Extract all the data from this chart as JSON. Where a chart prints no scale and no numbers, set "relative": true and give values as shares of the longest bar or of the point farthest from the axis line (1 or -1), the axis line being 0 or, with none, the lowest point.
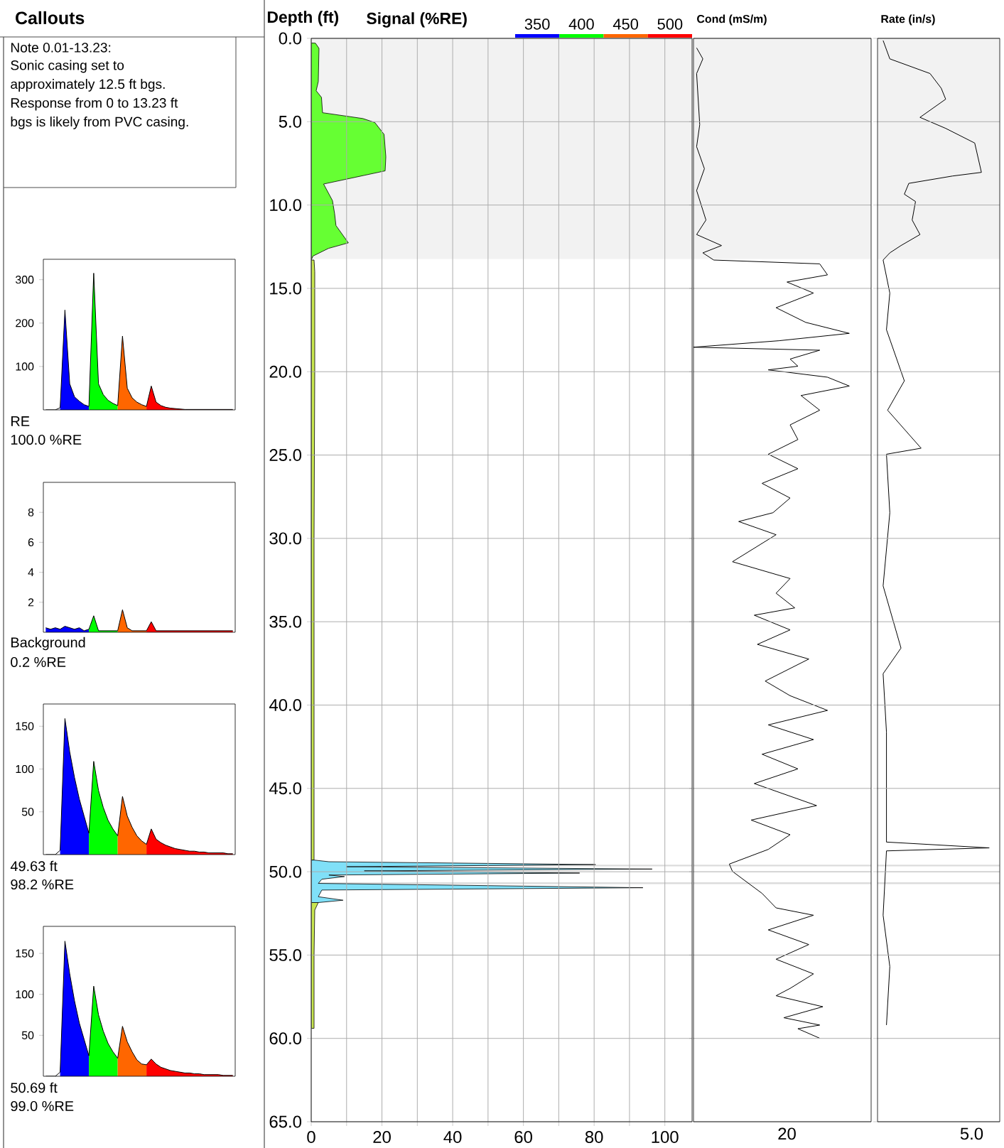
{
  "chart_data": [
    {
      "type": "other",
      "title": "Callouts",
      "annotations": [
        "Note 0.01-13.23:",
        "Sonic casing set to",
        "approximately 12.5 ft bgs.",
        "Response from 0 to 13.23 ft",
        "bgs is likely from PVC casing."
      ]
    },
    {
      "type": "area",
      "categories": [
        null,
        null,
        null,
        null,
        null,
        null,
        null,
        null,
        null,
        null,
        null,
        null,
        null,
        null,
        null,
        null,
        null,
        null,
        null,
        null,
        null,
        null,
        null,
        null,
        null,
        null,
        null,
        null,
        null,
        null,
        null,
        null,
        null,
        null,
        null,
        null,
        null,
        null,
        null,
        null
      ],
      "ylim": [
        0,
        347
      ],
      "yticks": [
        100,
        200,
        300
      ],
      "tick_labels": "y",
      "annotations": [
        "RE",
        "100.0 %RE"
      ],
      "series": [
        {
          "color": "#0000ff",
          "values": [
            null,
            null,
            null,
            5,
            230,
            60,
            30,
            20,
            12,
            8,
            null,
            null,
            null,
            null,
            null,
            null,
            null,
            null,
            null,
            null,
            null,
            null,
            null,
            null,
            null,
            null,
            null,
            null,
            null,
            null,
            null,
            null,
            null,
            null,
            null,
            null,
            null,
            null,
            null,
            null
          ]
        },
        {
          "color": "#00ff00",
          "values": [
            null,
            null,
            null,
            null,
            null,
            null,
            null,
            null,
            null,
            8,
            315,
            60,
            35,
            22,
            15,
            10,
            null,
            null,
            null,
            null,
            null,
            null,
            null,
            null,
            null,
            null,
            null,
            null,
            null,
            null,
            null,
            null,
            null,
            null,
            null,
            null,
            null,
            null,
            null,
            null
          ]
        },
        {
          "color": "#ff6600",
          "values": [
            null,
            null,
            null,
            null,
            null,
            null,
            null,
            null,
            null,
            null,
            null,
            null,
            null,
            null,
            null,
            10,
            170,
            50,
            28,
            18,
            12,
            8,
            null,
            null,
            null,
            null,
            null,
            null,
            null,
            null,
            null,
            null,
            null,
            null,
            null,
            null,
            null,
            null,
            null,
            null
          ]
        },
        {
          "color": "#ff0000",
          "values": [
            null,
            null,
            null,
            null,
            null,
            null,
            null,
            null,
            null,
            null,
            null,
            null,
            null,
            null,
            null,
            null,
            null,
            null,
            null,
            null,
            null,
            8,
            55,
            18,
            10,
            6,
            4,
            3,
            2,
            1,
            1,
            1,
            1,
            1,
            1,
            1,
            1,
            1,
            1,
            1
          ]
        },
        {
          "type": "line",
          "color": "#000000",
          "values": [
            0,
            0,
            0,
            5,
            230,
            60,
            30,
            20,
            12,
            8,
            315,
            60,
            35,
            22,
            15,
            10,
            170,
            50,
            28,
            18,
            12,
            8,
            55,
            18,
            10,
            6,
            4,
            3,
            2,
            1,
            1,
            1,
            1,
            1,
            1,
            1,
            1,
            1,
            1,
            1
          ]
        }
      ]
    },
    {
      "type": "area",
      "categories": [
        null,
        null,
        null,
        null,
        null,
        null,
        null,
        null,
        null,
        null,
        null,
        null,
        null,
        null,
        null,
        null,
        null,
        null,
        null,
        null,
        null,
        null,
        null,
        null,
        null,
        null,
        null,
        null,
        null,
        null,
        null,
        null,
        null,
        null,
        null,
        null,
        null,
        null,
        null,
        null
      ],
      "ylim": [
        0,
        10
      ],
      "yticks": [
        2,
        4,
        6,
        8
      ],
      "tick_labels": "y",
      "annotations": [
        "Background",
        "0.2 %RE"
      ],
      "series": [
        {
          "color": "#0000ff",
          "values": [
            0.3,
            0.2,
            0.3,
            0.2,
            0.4,
            0.3,
            0.2,
            0.3,
            0.1,
            0.2,
            null,
            null,
            null,
            null,
            null,
            null,
            null,
            null,
            null,
            null,
            null,
            null,
            null,
            null,
            null,
            null,
            null,
            null,
            null,
            null,
            null,
            null,
            null,
            null,
            null,
            null,
            null,
            null,
            null,
            null
          ]
        },
        {
          "color": "#00ff00",
          "values": [
            null,
            null,
            null,
            null,
            null,
            null,
            null,
            null,
            null,
            0.2,
            1.1,
            0.1,
            0.1,
            0.1,
            0.1,
            0.1,
            null,
            null,
            null,
            null,
            null,
            null,
            null,
            null,
            null,
            null,
            null,
            null,
            null,
            null,
            null,
            null,
            null,
            null,
            null,
            null,
            null,
            null,
            null,
            null
          ]
        },
        {
          "color": "#ff6600",
          "values": [
            null,
            null,
            null,
            null,
            null,
            null,
            null,
            null,
            null,
            null,
            null,
            null,
            null,
            null,
            null,
            0.1,
            1.5,
            0.3,
            0.1,
            0.1,
            0.1,
            0.1,
            null,
            null,
            null,
            null,
            null,
            null,
            null,
            null,
            null,
            null,
            null,
            null,
            null,
            null,
            null,
            null,
            null,
            null
          ]
        },
        {
          "color": "#ff0000",
          "values": [
            null,
            null,
            null,
            null,
            null,
            null,
            null,
            null,
            null,
            null,
            null,
            null,
            null,
            null,
            null,
            null,
            null,
            null,
            null,
            null,
            null,
            0.1,
            0.7,
            0.1,
            0.1,
            0.1,
            0.1,
            0.1,
            0.1,
            0.1,
            0.1,
            0.1,
            0.1,
            0.1,
            0.1,
            0.1,
            0.1,
            0.1,
            0.1,
            0.1
          ]
        },
        {
          "type": "line",
          "color": "#000000",
          "values": [
            0.3,
            0.2,
            0.3,
            0.2,
            0.4,
            0.3,
            0.2,
            0.3,
            0.1,
            0.2,
            1.1,
            0.1,
            0.1,
            0.1,
            0.1,
            0.1,
            1.5,
            0.3,
            0.1,
            0.1,
            0.1,
            0.1,
            0.7,
            0.1,
            0.1,
            0.1,
            0.1,
            0.1,
            0.1,
            0.1,
            0.1,
            0.1,
            0.1,
            0.1,
            0.1,
            0.1,
            0.1,
            0.1,
            0.1,
            0.1
          ]
        }
      ]
    },
    {
      "type": "area",
      "categories": [
        null,
        null,
        null,
        null,
        null,
        null,
        null,
        null,
        null,
        null,
        null,
        null,
        null,
        null,
        null,
        null,
        null,
        null,
        null,
        null,
        null,
        null,
        null,
        null,
        null,
        null,
        null,
        null,
        null,
        null,
        null,
        null,
        null,
        null,
        null,
        null,
        null,
        null,
        null,
        null
      ],
      "ylim": [
        0,
        176
      ],
      "yticks": [
        50,
        100,
        150
      ],
      "tick_labels": "y",
      "annotations": [
        "49.63 ft",
        "98.2 %RE"
      ],
      "series": [
        {
          "color": "#0000ff",
          "values": [
            null,
            null,
            null,
            5,
            159,
            120,
            90,
            65,
            45,
            25,
            null,
            null,
            null,
            null,
            null,
            null,
            null,
            null,
            null,
            null,
            null,
            null,
            null,
            null,
            null,
            null,
            null,
            null,
            null,
            null,
            null,
            null,
            null,
            null,
            null,
            null,
            null,
            null,
            null,
            null
          ]
        },
        {
          "color": "#00ff00",
          "values": [
            null,
            null,
            null,
            null,
            null,
            null,
            null,
            null,
            null,
            25,
            109,
            75,
            55,
            40,
            30,
            22,
            null,
            null,
            null,
            null,
            null,
            null,
            null,
            null,
            null,
            null,
            null,
            null,
            null,
            null,
            null,
            null,
            null,
            null,
            null,
            null,
            null,
            null,
            null,
            null
          ]
        },
        {
          "color": "#ff6600",
          "values": [
            null,
            null,
            null,
            null,
            null,
            null,
            null,
            null,
            null,
            null,
            null,
            null,
            null,
            null,
            null,
            22,
            68,
            45,
            32,
            22,
            16,
            12,
            null,
            null,
            null,
            null,
            null,
            null,
            null,
            null,
            null,
            null,
            null,
            null,
            null,
            null,
            null,
            null,
            null,
            null
          ]
        },
        {
          "color": "#ff0000",
          "values": [
            null,
            null,
            null,
            null,
            null,
            null,
            null,
            null,
            null,
            null,
            null,
            null,
            null,
            null,
            null,
            null,
            null,
            null,
            null,
            null,
            null,
            12,
            30,
            18,
            14,
            11,
            9,
            7,
            6,
            5,
            4,
            4,
            3,
            3,
            2,
            2,
            2,
            2,
            1,
            1
          ]
        },
        {
          "type": "line",
          "color": "#000000",
          "values": [
            0,
            0,
            0,
            5,
            159,
            120,
            90,
            65,
            45,
            25,
            109,
            75,
            55,
            40,
            30,
            22,
            68,
            45,
            32,
            22,
            16,
            12,
            30,
            18,
            14,
            11,
            9,
            7,
            6,
            5,
            4,
            4,
            3,
            3,
            2,
            2,
            2,
            2,
            1,
            1
          ]
        }
      ]
    },
    {
      "type": "area",
      "categories": [
        null,
        null,
        null,
        null,
        null,
        null,
        null,
        null,
        null,
        null,
        null,
        null,
        null,
        null,
        null,
        null,
        null,
        null,
        null,
        null,
        null,
        null,
        null,
        null,
        null,
        null,
        null,
        null,
        null,
        null,
        null,
        null,
        null,
        null,
        null,
        null,
        null,
        null,
        null,
        null
      ],
      "ylim": [
        0,
        183
      ],
      "yticks": [
        50,
        100,
        150
      ],
      "tick_labels": "y",
      "annotations": [
        "50.69 ft",
        "99.0 %RE"
      ],
      "series": [
        {
          "color": "#0000ff",
          "values": [
            null,
            null,
            null,
            5,
            165,
            125,
            92,
            65,
            45,
            25,
            null,
            null,
            null,
            null,
            null,
            null,
            null,
            null,
            null,
            null,
            null,
            null,
            null,
            null,
            null,
            null,
            null,
            null,
            null,
            null,
            null,
            null,
            null,
            null,
            null,
            null,
            null,
            null,
            null,
            null
          ]
        },
        {
          "color": "#00ff00",
          "values": [
            null,
            null,
            null,
            null,
            null,
            null,
            null,
            null,
            null,
            25,
            110,
            75,
            55,
            40,
            30,
            22,
            null,
            null,
            null,
            null,
            null,
            null,
            null,
            null,
            null,
            null,
            null,
            null,
            null,
            null,
            null,
            null,
            null,
            null,
            null,
            null,
            null,
            null,
            null,
            null
          ]
        },
        {
          "color": "#ff6600",
          "values": [
            null,
            null,
            null,
            null,
            null,
            null,
            null,
            null,
            null,
            null,
            null,
            null,
            null,
            null,
            null,
            22,
            61,
            42,
            30,
            20,
            15,
            14,
            null,
            null,
            null,
            null,
            null,
            null,
            null,
            null,
            null,
            null,
            null,
            null,
            null,
            null,
            null,
            null,
            null,
            null
          ]
        },
        {
          "color": "#ff0000",
          "values": [
            null,
            null,
            null,
            null,
            null,
            null,
            null,
            null,
            null,
            null,
            null,
            null,
            null,
            null,
            null,
            null,
            null,
            null,
            null,
            null,
            null,
            14,
            21,
            15,
            11,
            9,
            7,
            6,
            5,
            4,
            4,
            3,
            3,
            2,
            2,
            2,
            2,
            1,
            1,
            1
          ]
        },
        {
          "type": "line",
          "color": "#000000",
          "values": [
            0,
            0,
            0,
            5,
            165,
            125,
            92,
            65,
            45,
            25,
            110,
            75,
            55,
            40,
            30,
            22,
            61,
            42,
            30,
            20,
            15,
            14,
            21,
            15,
            11,
            9,
            7,
            6,
            5,
            4,
            4,
            3,
            3,
            2,
            2,
            2,
            2,
            1,
            1,
            1
          ]
        }
      ]
    },
    {
      "type": "area",
      "orientation": "horizontal",
      "xlabel": "Signal (%RE)",
      "ylabel": "Depth (ft)",
      "xlim": [
        0,
        107.7
      ],
      "xticks": [
        0,
        {
          "value": 10,
          "label": null
        },
        20,
        {
          "value": 30,
          "label": null
        },
        40,
        {
          "value": 50,
          "label": null
        },
        60,
        {
          "value": 70,
          "label": null
        },
        80,
        {
          "value": 90,
          "label": null
        },
        100
      ],
      "ylim": [
        65,
        0
      ],
      "yticks": [
        {
          "value": 0,
          "label": "0.0"
        },
        {
          "value": 5,
          "label": "5.0"
        },
        {
          "value": 10,
          "label": "10.0"
        },
        {
          "value": 15,
          "label": "15.0"
        },
        {
          "value": 20,
          "label": "20.0"
        },
        {
          "value": 25,
          "label": "25.0"
        },
        {
          "value": 30,
          "label": "30.0"
        },
        {
          "value": 35,
          "label": "35.0"
        },
        {
          "value": 40,
          "label": "40.0"
        },
        {
          "value": 45,
          "label": "45.0"
        },
        {
          "value": 50,
          "label": "50.0"
        },
        {
          "value": 55,
          "label": "55.0"
        },
        {
          "value": 60,
          "label": "60.0"
        },
        {
          "value": 65,
          "label": "65.0"
        }
      ],
      "grid": true,
      "bands": [
        {
          "axis": "y",
          "from": 0,
          "to": 13.23,
          "color": "#f2f2f2"
        }
      ],
      "ref_lines": [
        {
          "axis": "y",
          "value": 49.63,
          "color": "#dcdcdc"
        },
        {
          "axis": "y",
          "value": 50.69,
          "color": "#dcdcdc"
        }
      ],
      "annotations": [
        "350",
        "400",
        "450",
        "500"
      ],
      "series": [
        {
          "color": "#66ff33",
          "x": [
            0.28,
            0.29,
            0.6,
            2.59,
            3.14,
            3.54,
            4.46,
            4.81,
            5.05,
            5.76,
            7.11,
            7.95,
            8.74,
            9.73,
            10.5,
            11.23,
            12.27,
            12.6,
            13.06,
            13.3
          ],
          "values": [
            0,
            1.2,
            2.2,
            2.0,
            1.4,
            2.9,
            3.2,
            14.6,
            18.0,
            20.6,
            21.1,
            20.9,
            3.5,
            6.0,
            6.6,
            7.0,
            10.5,
            4.9,
            0.5,
            0
          ]
        },
        {
          "color": "#c8e650",
          "x": [
            13.3,
            14,
            20,
            30,
            40,
            49.3,
            50.5,
            51.85,
            52.3,
            55,
            59.4
          ],
          "values": [
            0.8,
            1.0,
            1.0,
            0.8,
            0.8,
            0.8,
            null,
            2,
            1,
            0.8,
            0.8
          ]
        },
        {
          "color": "#80e0f8",
          "x": [
            49.3,
            49.4,
            49.57,
            49.7,
            49.84,
            49.95,
            50.08,
            50.2,
            50.29,
            50.45,
            50.7,
            50.96,
            51.1,
            51.5,
            51.71,
            51.85
          ],
          "values": [
            0.8,
            5,
            80.4,
            10,
            96.4,
            15,
            75.9,
            5,
            9.4,
            3,
            2,
            93.8,
            3,
            2,
            9.0,
            2
          ]
        }
      ]
    },
    {
      "type": "line",
      "orientation": "horizontal",
      "relative": true,
      "xlabel": "Cond (mS/m)",
      "annotations": [
        "20"
      ],
      "ylim": [
        65,
        0
      ],
      "yticks": [
        {
          "value": 0,
          "label": null
        },
        {
          "value": 5,
          "label": null
        },
        {
          "value": 10,
          "label": null
        },
        {
          "value": 15,
          "label": null
        },
        {
          "value": 20,
          "label": null
        },
        {
          "value": 25,
          "label": null
        },
        {
          "value": 30,
          "label": null
        },
        {
          "value": 35,
          "label": null
        },
        {
          "value": 40,
          "label": null
        },
        {
          "value": 45,
          "label": null
        },
        {
          "value": 50,
          "label": null
        },
        {
          "value": 55,
          "label": null
        },
        {
          "value": 60,
          "label": null
        },
        {
          "value": 65,
          "label": null
        }
      ],
      "tick_labels": false,
      "grid": "y",
      "bands": [
        {
          "axis": "y",
          "from": 0,
          "to": 13.23,
          "color": "#f2f2f2"
        }
      ],
      "ref_lines": [
        {
          "axis": "y",
          "value": 49.63,
          "color": "#dcdcdc"
        },
        {
          "axis": "y",
          "value": 50.69,
          "color": "#dcdcdc"
        }
      ],
      "color": "#000000",
      "x": [
        0.57,
        1.23,
        2.11,
        5.18,
        6.5,
        7.82,
        9.13,
        10.9,
        11.77,
        12.43,
        12.87,
        13.3,
        13.53,
        14.19,
        14.62,
        15.28,
        16.16,
        17.04,
        17.7,
        18.14,
        18.53,
        18.71,
        19.24,
        19.67,
        19.89,
        20.33,
        20.86,
        21.43,
        22.31,
        23.19,
        24.07,
        24.95,
        25.82,
        26.7,
        27.58,
        28.46,
        28.99,
        29.78,
        31.4,
        32.41,
        33.29,
        34.17,
        34.61,
        35.49,
        36.36,
        37.24,
        38.56,
        39.44,
        40.32,
        41.19,
        42.07,
        42.95,
        43.83,
        44.71,
        46.03,
        46.9,
        47.78,
        48.66,
        49.54,
        49.98,
        51.3,
        52.17,
        52.61,
        53.49,
        54.37,
        55.25,
        56.13,
        57.0,
        57.44,
        58.1,
        58.76,
        59.2,
        59.42,
        59.99
      ],
      "values": [
        0.02,
        0.06,
        0.02,
        0.04,
        0.02,
        0.07,
        0.02,
        0.08,
        0.02,
        0.18,
        0.06,
        0.13,
        0.81,
        0.86,
        0.6,
        0.77,
        0.53,
        0.72,
        1,
        0.55,
        0,
        0.81,
        0.62,
        0.67,
        0.48,
        0.86,
        1,
        0.69,
        0.81,
        0.62,
        0.67,
        0.48,
        0.67,
        0.44,
        0.62,
        0.51,
        0.29,
        0.53,
        0.25,
        0.62,
        0.53,
        0.65,
        0.39,
        0.62,
        0.41,
        0.74,
        0.46,
        0.62,
        0.86,
        0.48,
        0.77,
        0.44,
        0.67,
        0.39,
        0.79,
        0.37,
        0.62,
        0.48,
        0.23,
        0.25,
        0.44,
        0.53,
        0.77,
        0.48,
        0.74,
        0.53,
        0.77,
        0.62,
        0.53,
        0.83,
        0.58,
        0.81,
        0.67,
        0.81
      ]
    },
    {
      "type": "line",
      "orientation": "horizontal",
      "relative": true,
      "xlabel": "Rate (in/s)",
      "annotations": [
        "5.0"
      ],
      "ylim": [
        65,
        0
      ],
      "yticks": [
        {
          "value": 0,
          "label": null
        },
        {
          "value": 5,
          "label": null
        },
        {
          "value": 10,
          "label": null
        },
        {
          "value": 15,
          "label": null
        },
        {
          "value": 20,
          "label": null
        },
        {
          "value": 25,
          "label": null
        },
        {
          "value": 30,
          "label": null
        },
        {
          "value": 35,
          "label": null
        },
        {
          "value": 40,
          "label": null
        },
        {
          "value": 45,
          "label": null
        },
        {
          "value": 50,
          "label": null
        },
        {
          "value": 55,
          "label": null
        },
        {
          "value": 60,
          "label": null
        },
        {
          "value": 65,
          "label": null
        }
      ],
      "tick_labels": false,
      "grid": "y",
      "bands": [
        {
          "axis": "y",
          "from": 0,
          "to": 13.23,
          "color": "#f2f2f2"
        }
      ],
      "ref_lines": [
        {
          "axis": "y",
          "value": 49.63,
          "color": "#dcdcdc"
        },
        {
          "axis": "y",
          "value": 50.69,
          "color": "#dcdcdc"
        }
      ],
      "color": "#000000",
      "x": [
        0.13,
        1.23,
        2.11,
        2.99,
        3.65,
        4.74,
        5.4,
        6.28,
        8.04,
        8.26,
        8.7,
        9.35,
        9.79,
        10.9,
        11.77,
        12.43,
        12.87,
        13.3,
        15.28,
        17.48,
        20.55,
        22.31,
        24.59,
        24.95,
        28.46,
        32.85,
        36.58,
        38.12,
        41.63,
        46.03,
        48.22,
        48.57,
        48.75,
        52.61,
        55.69,
        59.2
      ],
      "values": [
        0.05,
        0.11,
        0.47,
        0.57,
        0.61,
        0.38,
        0.61,
        0.87,
        0.93,
        0.67,
        0.28,
        0.24,
        0.34,
        0.31,
        0.38,
        0.21,
        0.11,
        0.05,
        0.11,
        0.08,
        0.24,
        0.09,
        0.39,
        0.08,
        0.11,
        0.05,
        0.21,
        0.05,
        0.08,
        0.08,
        0.08,
        1,
        0.08,
        0.05,
        0.11,
        0.08
      ]
    }
  ]
}
